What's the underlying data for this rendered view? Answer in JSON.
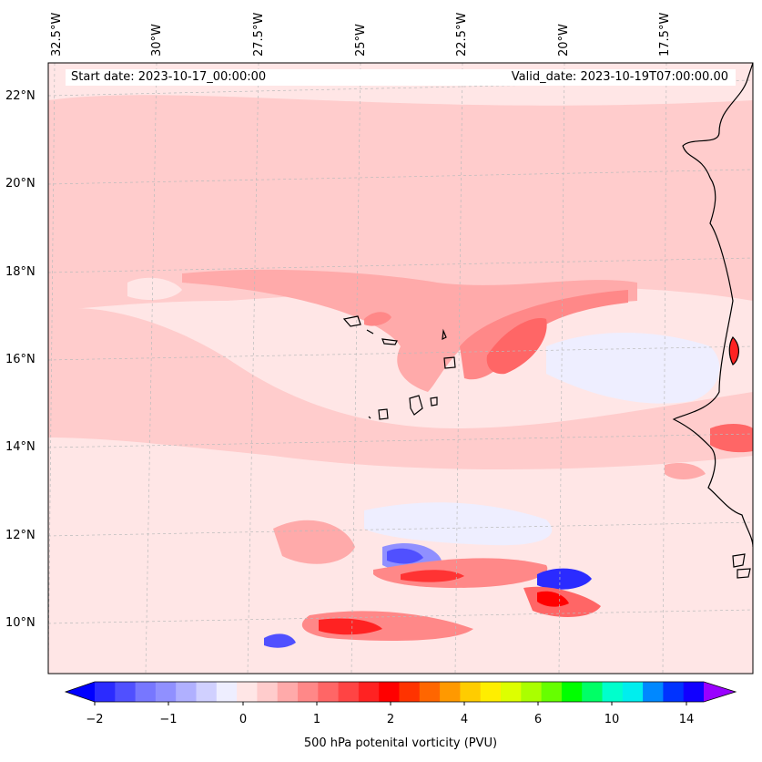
{
  "map": {
    "start_date": "Start date: 2023-10-17_00:00:00",
    "valid_date": "Valid_date: 2023-10-19T07:00:00.00",
    "variable_label": "500 hPa potenital vorticity (PVU)",
    "lon_labels": [
      "32.5°W",
      "30°W",
      "27.5°W",
      "25°W",
      "22.5°W",
      "20°W",
      "17.5°W"
    ],
    "lat_labels": [
      "22°N",
      "20°N",
      "18°N",
      "16°N",
      "14°N",
      "12°N",
      "10°N"
    ]
  },
  "colorbar": {
    "ticks": [
      "−2",
      "−1",
      "0",
      "1",
      "2",
      "4",
      "6",
      "10",
      "14"
    ],
    "colors": [
      "#0000ff",
      "#2b2bff",
      "#5050ff",
      "#7777ff",
      "#9090ff",
      "#b0b0ff",
      "#d0d0ff",
      "#eeeeff",
      "#ffe6e6",
      "#ffcccc",
      "#ffaaaa",
      "#ff8888",
      "#ff6666",
      "#ff4444",
      "#ff2222",
      "#ff0000",
      "#ff3300",
      "#ff6600",
      "#ff9900",
      "#ffcc00",
      "#ffee00",
      "#ddff00",
      "#aaff00",
      "#66ff00",
      "#00ff00",
      "#00ff66",
      "#00ffcc",
      "#00eeee",
      "#0088ff",
      "#0033ff",
      "#1100ff",
      "#9900ff"
    ]
  }
}
